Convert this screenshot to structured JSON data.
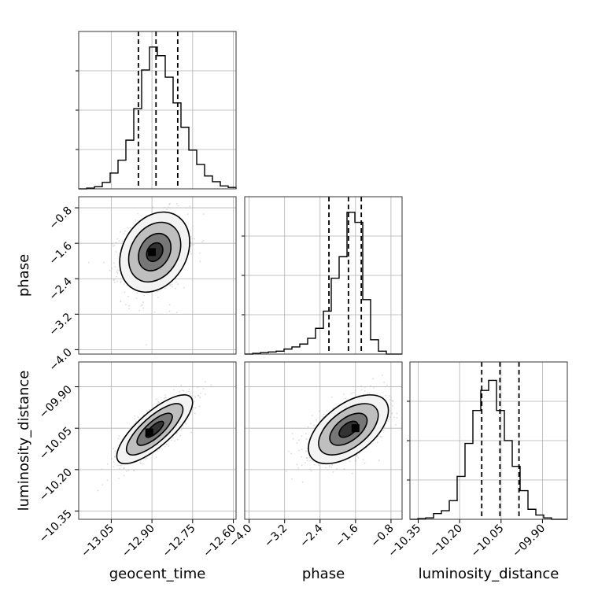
{
  "chart_data": {
    "type": "corner",
    "parameters": [
      "geocent_time",
      "phase",
      "luminosity_distance"
    ],
    "axis_labels": {
      "x": [
        "geocent_time",
        "phase",
        "luminosity_distance"
      ],
      "y": [
        "",
        "phase",
        "luminosity_distance"
      ]
    },
    "ticks": {
      "geocent_time": {
        "values": [
          -13.05,
          -12.9,
          -12.75,
          -12.6
        ],
        "labels": [
          "−13.05",
          "−12.90",
          "−12.75",
          "−12.60"
        ]
      },
      "phase": {
        "values": [
          -4.0,
          -3.2,
          -2.4,
          -1.6,
          -0.8
        ],
        "labels": [
          "−4.0",
          "−3.2",
          "−2.4",
          "−1.6",
          "−0.8"
        ]
      },
      "luminosity_distance": {
        "values": [
          -10.35,
          -10.2,
          -10.05,
          -9.9
        ],
        "labels": [
          "−10.35",
          "−10.20",
          "−10.05",
          "−09.90"
        ]
      }
    },
    "ranges": {
      "geocent_time": [
        -13.17,
        -12.59
      ],
      "phase": [
        -4.1,
        -0.55
      ],
      "luminosity_distance": [
        -10.38,
        -9.81
      ]
    },
    "quantiles": {
      "geocent_time": [
        -12.95,
        -12.885,
        -12.805
      ],
      "phase": [
        -2.2,
        -1.76,
        -1.47
      ],
      "luminosity_distance": [
        -10.12,
        -10.054,
        -9.985
      ]
    },
    "histograms": {
      "geocent_time": [
        0.0,
        0.005,
        0.015,
        0.045,
        0.11,
        0.2,
        0.34,
        0.56,
        0.83,
        0.99,
        0.93,
        0.78,
        0.6,
        0.43,
        0.27,
        0.17,
        0.09,
        0.05,
        0.02,
        0.01
      ],
      "phase": [
        0.0,
        0.005,
        0.01,
        0.015,
        0.02,
        0.035,
        0.05,
        0.07,
        0.11,
        0.18,
        0.3,
        0.53,
        0.68,
        0.99,
        0.92,
        0.38,
        0.1,
        0.02,
        0.0,
        0.0
      ],
      "luminosity_distance": [
        0.0,
        0.005,
        0.01,
        0.04,
        0.06,
        0.13,
        0.3,
        0.53,
        0.76,
        0.9,
        0.97,
        0.76,
        0.55,
        0.37,
        0.2,
        0.07,
        0.03,
        0.01,
        0.0,
        0.0
      ]
    },
    "correlations": {
      "phase_vs_geocent_time": {
        "mean_x": -12.89,
        "mean_y": -1.8,
        "peak_x": -12.9,
        "peak_y": -1.8
      },
      "luminosity_distance_vs_geocent_time": {
        "mean_x": -12.89,
        "mean_y": -10.054,
        "peak_x": -12.91,
        "peak_y": -10.065
      },
      "luminosity_distance_vs_phase": {
        "mean_x": -1.76,
        "mean_y": -10.054,
        "peak_x": -1.6,
        "peak_y": -10.05
      }
    },
    "grid": true,
    "colors": {
      "hist": "#000000",
      "contour": "#000000",
      "density": "#000000",
      "points": "#bdbdbd"
    }
  }
}
